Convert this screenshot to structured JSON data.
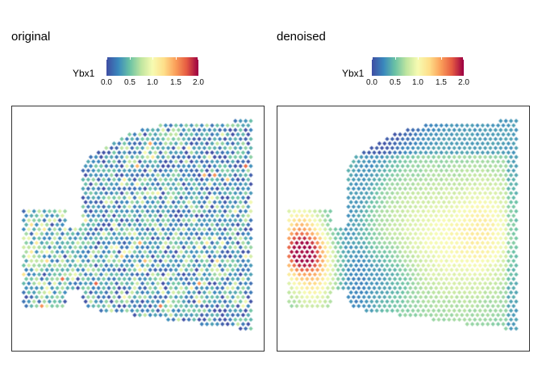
{
  "chart_data": [
    {
      "type": "scatter",
      "title": "original",
      "legend": {
        "title": "Ybx1",
        "placement": "top",
        "ticks": [
          "0.0",
          "0.5",
          "1.0",
          "1.5",
          "2.0"
        ],
        "range": [
          0,
          2
        ]
      },
      "colormap": "Spectral (reversed)",
      "colormap_stops": [
        "#3F4FA4",
        "#3A88BD",
        "#6AC2A5",
        "#BFE5A0",
        "#F7FBB2",
        "#FEE08B",
        "#FBA15B",
        "#E65C42",
        "#9E0142"
      ],
      "grid": false,
      "axes_visible": false,
      "style": "noisy",
      "regions": [
        {
          "name": "left-lobe",
          "approx_value": 1.3
        },
        {
          "name": "main-body",
          "approx_value": 0.6
        }
      ]
    },
    {
      "type": "scatter",
      "title": "denoised",
      "legend": {
        "title": "Ybx1",
        "placement": "top",
        "ticks": [
          "0.0",
          "0.5",
          "1.0",
          "1.5",
          "2.0"
        ],
        "range": [
          0,
          2
        ]
      },
      "colormap": "Spectral (reversed)",
      "colormap_stops": [
        "#3F4FA4",
        "#3A88BD",
        "#6AC2A5",
        "#BFE5A0",
        "#F7FBB2",
        "#FEE08B",
        "#FBA15B",
        "#E65C42",
        "#9E0142"
      ],
      "grid": false,
      "axes_visible": false,
      "style": "smooth",
      "regions": [
        {
          "name": "left-lobe-hotspot",
          "approx_value": 2.0
        },
        {
          "name": "central-band",
          "approx_value": 1.0
        },
        {
          "name": "outer-shell",
          "approx_value": 0.3
        }
      ]
    }
  ]
}
